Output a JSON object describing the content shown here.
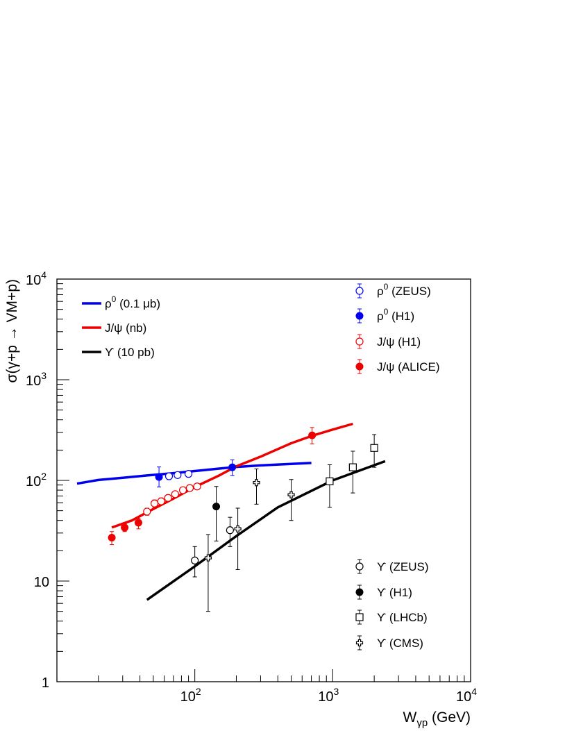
{
  "chart_data": {
    "type": "scatter",
    "xscale": "log",
    "yscale": "log",
    "xlim": [
      10,
      10000
    ],
    "ylim": [
      1,
      10000
    ],
    "xlabel": "W",
    "xlabel_sub": "γp",
    "xlabel_unit": "(GeV)",
    "ylabel": "σ(γ+p → VM+p)",
    "x_ticks": [
      {
        "base": "10",
        "exp": "2",
        "value": 100
      },
      {
        "base": "10",
        "exp": "3",
        "value": 1000
      },
      {
        "base": "10",
        "exp": "4",
        "value": 10000
      }
    ],
    "y_ticks": [
      {
        "base": "1",
        "exp": "",
        "value": 1
      },
      {
        "base": "10",
        "exp": "",
        "value": 10
      },
      {
        "base": "10",
        "exp": "2",
        "value": 100
      },
      {
        "base": "10",
        "exp": "3",
        "value": 1000
      },
      {
        "base": "10",
        "exp": "4",
        "value": 10000
      }
    ],
    "grid": false,
    "curves": [
      {
        "name": "ρ",
        "sup": "0",
        "rest": " (0.1 μb)",
        "color": "#0000ee",
        "points": [
          [
            14,
            93
          ],
          [
            20,
            101
          ],
          [
            30,
            106
          ],
          [
            45,
            112
          ],
          [
            70,
            118
          ],
          [
            100,
            124
          ],
          [
            150,
            131
          ],
          [
            200,
            136
          ],
          [
            300,
            141
          ],
          [
            500,
            146
          ],
          [
            700,
            149
          ]
        ]
      },
      {
        "name": "J/ψ",
        "sup": "",
        "rest": " (nb)",
        "color": "#ee0000",
        "points": [
          [
            25,
            34
          ],
          [
            35,
            40
          ],
          [
            50,
            52
          ],
          [
            70,
            66
          ],
          [
            100,
            86
          ],
          [
            150,
            112
          ],
          [
            200,
            138
          ],
          [
            300,
            172
          ],
          [
            500,
            234
          ],
          [
            700,
            276
          ],
          [
            1000,
            320
          ],
          [
            1400,
            365
          ]
        ]
      },
      {
        "name": "ϒ",
        "sup": "",
        "rest": " (10 pb)",
        "color": "#000000",
        "points": [
          [
            45,
            6.5
          ],
          [
            100,
            14
          ],
          [
            200,
            28
          ],
          [
            400,
            54
          ],
          [
            1000,
            100
          ],
          [
            2400,
            155
          ]
        ]
      }
    ],
    "series": [
      {
        "name": "ρ",
        "sup": "0",
        "rest": " (ZEUS)",
        "color": "#0000ee",
        "marker": "open-circle",
        "points": [
          [
            65,
            110,
            8,
            8
          ],
          [
            75,
            113,
            7,
            7
          ],
          [
            90,
            116,
            8,
            8
          ]
        ]
      },
      {
        "name": "ρ",
        "sup": "0",
        "rest": " (H1)",
        "color": "#0000ee",
        "marker": "filled-circle",
        "points": [
          [
            55,
            108,
            28,
            22
          ],
          [
            187,
            135,
            25,
            23
          ]
        ]
      },
      {
        "name": "J/ψ",
        "sup": "",
        "rest": " (H1)",
        "color": "#ee0000",
        "marker": "open-circle",
        "points": [
          [
            45,
            49,
            4,
            4
          ],
          [
            51,
            59,
            5,
            5
          ],
          [
            57,
            62,
            5,
            5
          ],
          [
            64,
            67,
            5,
            5
          ],
          [
            72,
            73,
            5,
            5
          ],
          [
            82,
            80,
            6,
            6
          ],
          [
            92,
            84,
            6,
            6
          ],
          [
            104,
            87,
            6,
            6
          ]
        ]
      },
      {
        "name": "J/ψ",
        "sup": "",
        "rest": " (ALICE)",
        "color": "#ee0000",
        "marker": "filled-circle",
        "points": [
          [
            25,
            27,
            4,
            4
          ],
          [
            31,
            34,
            3,
            3
          ],
          [
            39,
            38,
            4,
            5
          ],
          [
            709,
            280,
            55,
            50
          ]
        ]
      },
      {
        "name": "ϒ",
        "sup": "",
        "rest": " (ZEUS)",
        "color": "#000000",
        "marker": "open-circle",
        "points": [
          [
            100,
            16,
            6,
            5
          ],
          [
            180,
            32,
            11,
            10
          ]
        ]
      },
      {
        "name": "ϒ",
        "sup": "",
        "rest": " (H1)",
        "color": "#000000",
        "marker": "filled-circle",
        "points": [
          [
            143,
            55,
            32,
            30
          ]
        ]
      },
      {
        "name": "ϒ",
        "sup": "",
        "rest": " (LHCb)",
        "color": "#000000",
        "marker": "open-square",
        "points": [
          [
            950,
            98,
            45,
            44
          ],
          [
            1400,
            135,
            60,
            60
          ],
          [
            2000,
            210,
            75,
            75
          ]
        ]
      },
      {
        "name": "ϒ",
        "sup": "",
        "rest": " (CMS)",
        "color": "#000000",
        "marker": "open-cross",
        "points": [
          [
            125,
            17,
            12,
            12
          ],
          [
            205,
            33,
            20,
            20
          ],
          [
            280,
            95,
            35,
            37
          ],
          [
            500,
            72,
            30,
            32
          ]
        ]
      }
    ]
  }
}
